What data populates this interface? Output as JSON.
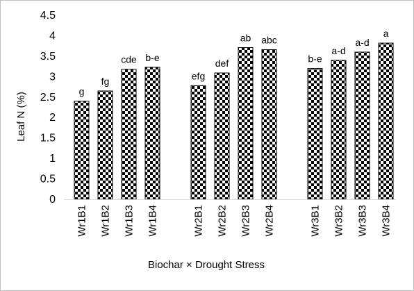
{
  "chart_data": {
    "type": "bar",
    "title": "",
    "xlabel": "Biochar × Drought Stress",
    "ylabel": "Leaf N (%)",
    "ylim": [
      0,
      4.5
    ],
    "yticks": [
      "0",
      "0.5",
      "1",
      "1.5",
      "2",
      "2.5",
      "3",
      "3.5",
      "4",
      "4.5"
    ],
    "grid": false,
    "legend": "none",
    "bar_pattern": "checkerboard",
    "colors": {
      "dark": "#000000",
      "light": "#ffffff",
      "axis": "#d9d9d9",
      "frame": "#bfbfbf"
    },
    "groups": [
      {
        "categories": [
          "Wr1B1",
          "Wr1B2",
          "Wr1B3",
          "Wr1B4"
        ],
        "values": [
          2.4,
          2.65,
          3.18,
          3.23
        ],
        "labels": [
          "g",
          "fg",
          "cde",
          "b-e"
        ]
      },
      {
        "categories": [
          "Wr2B1",
          "Wr2B2",
          "Wr2B3",
          "Wr2B4"
        ],
        "values": [
          2.78,
          3.09,
          3.71,
          3.66
        ],
        "labels": [
          "efg",
          "def",
          "ab",
          "abc"
        ]
      },
      {
        "categories": [
          "Wr3B1",
          "Wr3B2",
          "Wr3B3",
          "Wr3B4"
        ],
        "values": [
          3.2,
          3.4,
          3.6,
          3.82
        ],
        "labels": [
          "b-e",
          "a-d",
          "a-d",
          "a"
        ]
      }
    ]
  }
}
